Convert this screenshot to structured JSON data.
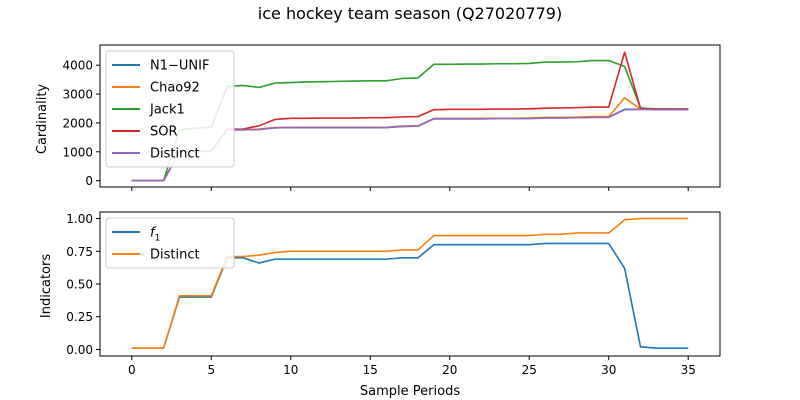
{
  "figure": {
    "title": "ice hockey team season (Q27020779)"
  },
  "chart_data": [
    {
      "type": "line",
      "id": "top",
      "xlabel": "",
      "ylabel": "Cardinality",
      "xlim": [
        -2.0,
        37.0
      ],
      "ylim": [
        -220,
        4700
      ],
      "xticks": [
        0,
        5,
        10,
        15,
        20,
        25,
        30,
        35
      ],
      "show_xticklabels": false,
      "yticks": [
        0,
        1000,
        2000,
        3000,
        4000
      ],
      "legend": "upper left",
      "x": [
        0,
        1,
        2,
        3,
        4,
        5,
        6,
        7,
        8,
        9,
        10,
        11,
        12,
        13,
        14,
        15,
        16,
        17,
        18,
        19,
        20,
        21,
        22,
        23,
        24,
        25,
        26,
        27,
        28,
        29,
        30,
        31,
        32,
        33,
        34,
        35
      ],
      "series": [
        {
          "name": "N1−UNIF",
          "color": "#1f77b4",
          "values": [
            0,
            0,
            0,
            1000,
            1010,
            1020,
            1760,
            1760,
            1780,
            1830,
            1840,
            1840,
            1840,
            1840,
            1840,
            1840,
            1840,
            1880,
            1890,
            2150,
            2150,
            2150,
            2150,
            2160,
            2160,
            2160,
            2180,
            2180,
            2190,
            2200,
            2200,
            2470,
            2470,
            2470,
            2470,
            2470
          ]
        },
        {
          "name": "Chao92",
          "color": "#ff7f0e",
          "values": [
            0,
            0,
            0,
            1010,
            1020,
            1030,
            1770,
            1770,
            1790,
            1840,
            1850,
            1850,
            1850,
            1850,
            1850,
            1850,
            1850,
            1890,
            1900,
            2150,
            2150,
            2150,
            2160,
            2160,
            2160,
            2170,
            2190,
            2190,
            2200,
            2220,
            2220,
            2870,
            2480,
            2470,
            2470,
            2470
          ]
        },
        {
          "name": "Jack1",
          "color": "#2ca02c",
          "values": [
            0,
            0,
            0,
            1760,
            1820,
            1850,
            3260,
            3300,
            3230,
            3380,
            3400,
            3420,
            3430,
            3440,
            3450,
            3460,
            3460,
            3540,
            3560,
            4030,
            4030,
            4040,
            4040,
            4050,
            4050,
            4060,
            4110,
            4110,
            4120,
            4160,
            4160,
            3960,
            2520,
            2480,
            2480,
            2480
          ]
        },
        {
          "name": "SOR",
          "color": "#d62728",
          "values": [
            0,
            0,
            0,
            1010,
            1020,
            1030,
            1780,
            1790,
            1900,
            2120,
            2160,
            2160,
            2170,
            2170,
            2170,
            2180,
            2180,
            2210,
            2220,
            2460,
            2470,
            2470,
            2470,
            2480,
            2480,
            2490,
            2510,
            2520,
            2530,
            2550,
            2550,
            4450,
            2500,
            2480,
            2480,
            2480
          ]
        },
        {
          "name": "Distinct",
          "color": "#9467bd",
          "values": [
            0,
            0,
            0,
            1000,
            1010,
            1020,
            1760,
            1760,
            1770,
            1830,
            1840,
            1840,
            1840,
            1840,
            1840,
            1840,
            1840,
            1880,
            1890,
            2140,
            2140,
            2140,
            2140,
            2150,
            2150,
            2150,
            2170,
            2170,
            2180,
            2190,
            2190,
            2460,
            2470,
            2460,
            2460,
            2460
          ]
        }
      ]
    },
    {
      "type": "line",
      "id": "bottom",
      "xlabel": "Sample Periods",
      "ylabel": "Indicators",
      "xlim": [
        -2.0,
        37.0
      ],
      "ylim": [
        -0.05,
        1.05
      ],
      "xticks": [
        0,
        5,
        10,
        15,
        20,
        25,
        30,
        35
      ],
      "show_xticklabels": true,
      "yticks": [
        0.0,
        0.25,
        0.5,
        0.75,
        1.0
      ],
      "ytick_labels": [
        "0.00",
        "0.25",
        "0.50",
        "0.75",
        "1.00"
      ],
      "legend": "upper left",
      "x": [
        0,
        1,
        2,
        3,
        4,
        5,
        6,
        7,
        8,
        9,
        10,
        11,
        12,
        13,
        14,
        15,
        16,
        17,
        18,
        19,
        20,
        21,
        22,
        23,
        24,
        25,
        26,
        27,
        28,
        29,
        30,
        31,
        32,
        33,
        34,
        35
      ],
      "series": [
        {
          "name": "f",
          "name_subscript": "1",
          "color": "#1f77b4",
          "values": [
            0.01,
            0.01,
            0.01,
            0.4,
            0.4,
            0.4,
            0.7,
            0.7,
            0.66,
            0.69,
            0.69,
            0.69,
            0.69,
            0.69,
            0.69,
            0.69,
            0.69,
            0.7,
            0.7,
            0.8,
            0.8,
            0.8,
            0.8,
            0.8,
            0.8,
            0.8,
            0.81,
            0.81,
            0.81,
            0.81,
            0.81,
            0.62,
            0.02,
            0.01,
            0.01,
            0.01
          ]
        },
        {
          "name": "Distinct",
          "color": "#ff7f0e",
          "values": [
            0.01,
            0.01,
            0.01,
            0.41,
            0.41,
            0.41,
            0.71,
            0.71,
            0.72,
            0.74,
            0.75,
            0.75,
            0.75,
            0.75,
            0.75,
            0.75,
            0.75,
            0.76,
            0.76,
            0.87,
            0.87,
            0.87,
            0.87,
            0.87,
            0.87,
            0.87,
            0.88,
            0.88,
            0.89,
            0.89,
            0.89,
            0.99,
            1.0,
            1.0,
            1.0,
            1.0
          ]
        }
      ]
    }
  ]
}
